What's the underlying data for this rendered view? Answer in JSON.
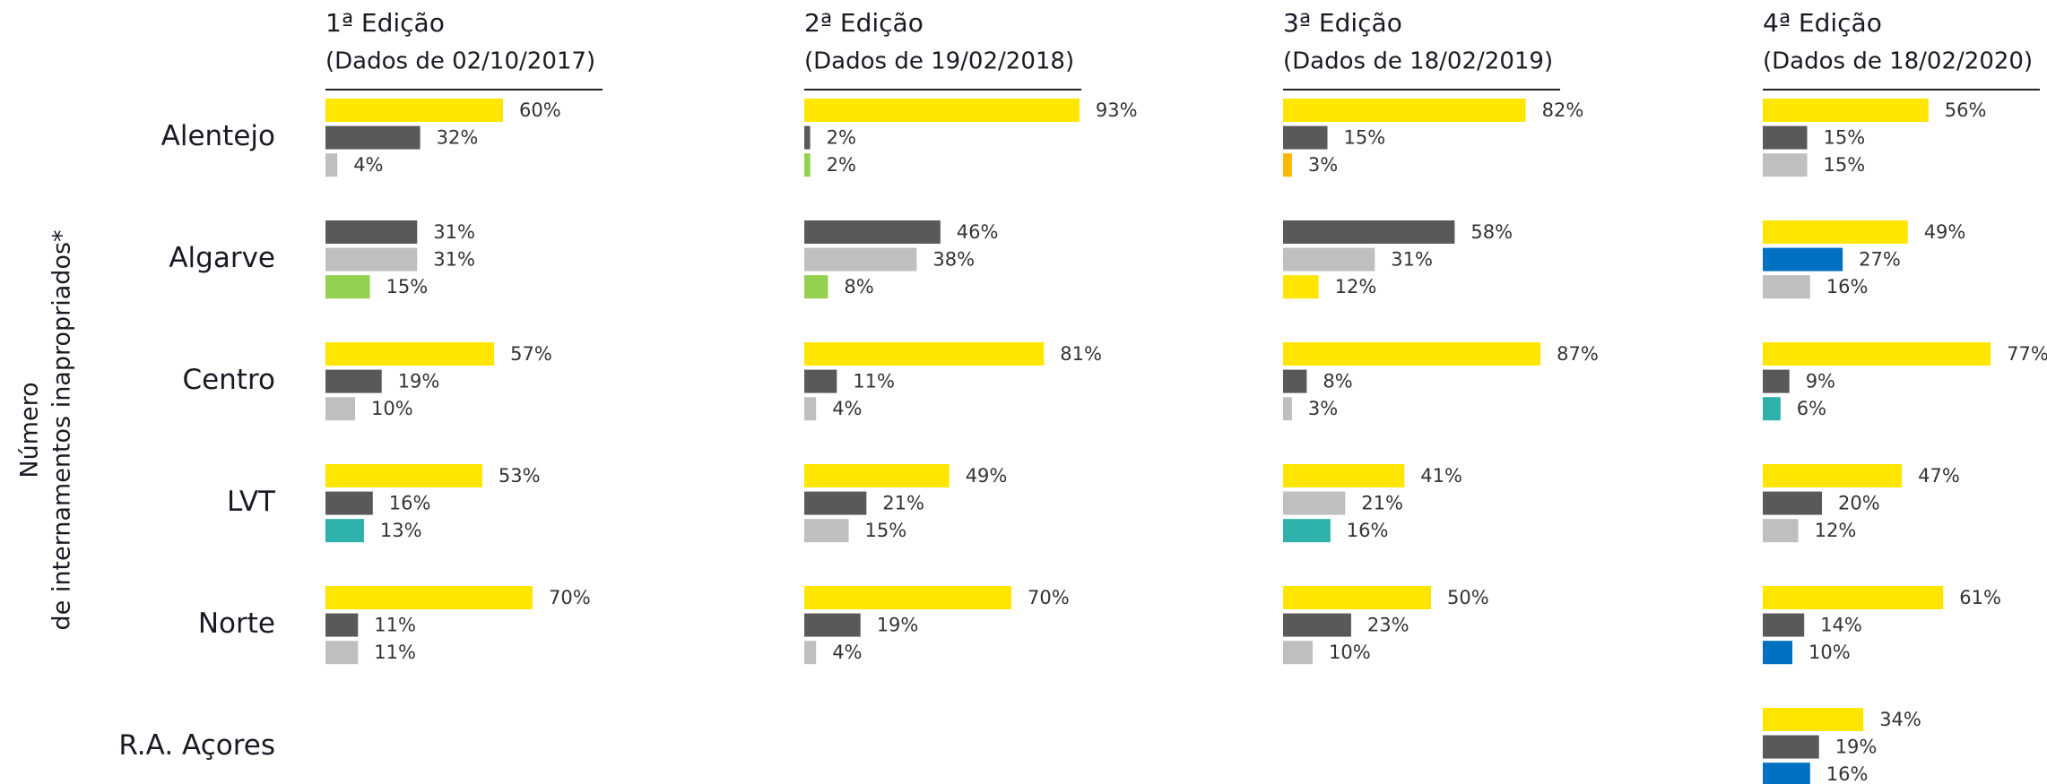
{
  "chart_data": {
    "type": "bar",
    "y_label": [
      "Número",
      "de internamentos inapropriados*"
    ],
    "categories": [
      "Alentejo",
      "Algarve",
      "Centro",
      "LVT",
      "Norte",
      "R.A. Açores"
    ],
    "xlim": [
      0,
      100
    ],
    "panels": [
      {
        "title": "1ª Edição",
        "subtitle": "(Dados de 02/10/2017)",
        "groups": [
          {
            "values": [
              60,
              32,
              4
            ],
            "value_labels": [
              "60%",
              "32%",
              "4%"
            ],
            "colors": [
              "#ffe600",
              "#595959",
              "#bfbfbf"
            ]
          },
          {
            "values": [
              31,
              31,
              15
            ],
            "value_labels": [
              "31%",
              "31%",
              "15%"
            ],
            "colors": [
              "#595959",
              "#bfbfbf",
              "#92d050"
            ]
          },
          {
            "values": [
              57,
              19,
              10
            ],
            "value_labels": [
              "57%",
              "19%",
              "10%"
            ],
            "colors": [
              "#ffe600",
              "#595959",
              "#bfbfbf"
            ]
          },
          {
            "values": [
              53,
              16,
              13
            ],
            "value_labels": [
              "53%",
              "16%",
              "13%"
            ],
            "colors": [
              "#ffe600",
              "#595959",
              "#2db1aa"
            ]
          },
          {
            "values": [
              70,
              11,
              11
            ],
            "value_labels": [
              "70%",
              "11%",
              "11%"
            ],
            "colors": [
              "#ffe600",
              "#595959",
              "#bfbfbf"
            ]
          }
        ]
      },
      {
        "title": "2ª Edição",
        "subtitle": "(Dados de 19/02/2018)",
        "groups": [
          {
            "values": [
              93,
              2,
              2
            ],
            "value_labels": [
              "93%",
              "2%",
              "2%"
            ],
            "colors": [
              "#ffe600",
              "#595959",
              "#92d050"
            ]
          },
          {
            "values": [
              46,
              38,
              8
            ],
            "value_labels": [
              "46%",
              "38%",
              "8%"
            ],
            "colors": [
              "#595959",
              "#bfbfbf",
              "#92d050"
            ]
          },
          {
            "values": [
              81,
              11,
              4
            ],
            "value_labels": [
              "81%",
              "11%",
              "4%"
            ],
            "colors": [
              "#ffe600",
              "#595959",
              "#bfbfbf"
            ]
          },
          {
            "values": [
              49,
              21,
              15
            ],
            "value_labels": [
              "49%",
              "21%",
              "15%"
            ],
            "colors": [
              "#ffe600",
              "#595959",
              "#bfbfbf"
            ]
          },
          {
            "values": [
              70,
              19,
              4
            ],
            "value_labels": [
              "70%",
              "19%",
              "4%"
            ],
            "colors": [
              "#ffe600",
              "#595959",
              "#bfbfbf"
            ]
          }
        ]
      },
      {
        "title": "3ª Edição",
        "subtitle": "(Dados de 18/02/2019)",
        "groups": [
          {
            "values": [
              82,
              15,
              3
            ],
            "value_labels": [
              "82%",
              "15%",
              "3%"
            ],
            "colors": [
              "#ffe600",
              "#595959",
              "#ffb800"
            ]
          },
          {
            "values": [
              58,
              31,
              12
            ],
            "value_labels": [
              "58%",
              "31%",
              "12%"
            ],
            "colors": [
              "#595959",
              "#bfbfbf",
              "#ffe600"
            ]
          },
          {
            "values": [
              87,
              8,
              3
            ],
            "value_labels": [
              "87%",
              "8%",
              "3%"
            ],
            "colors": [
              "#ffe600",
              "#595959",
              "#bfbfbf"
            ]
          },
          {
            "values": [
              41,
              21,
              16
            ],
            "value_labels": [
              "41%",
              "21%",
              "16%"
            ],
            "colors": [
              "#ffe600",
              "#bfbfbf",
              "#2db1aa"
            ]
          },
          {
            "values": [
              50,
              23,
              10
            ],
            "value_labels": [
              "50%",
              "23%",
              "10%"
            ],
            "colors": [
              "#ffe600",
              "#595959",
              "#bfbfbf"
            ]
          }
        ]
      },
      {
        "title": "4ª Edição",
        "subtitle": "(Dados de 18/02/2020)",
        "groups": [
          {
            "values": [
              56,
              15,
              15
            ],
            "value_labels": [
              "56%",
              "15%",
              "15%"
            ],
            "colors": [
              "#ffe600",
              "#595959",
              "#bfbfbf"
            ]
          },
          {
            "values": [
              49,
              27,
              16
            ],
            "value_labels": [
              "49%",
              "27%",
              "16%"
            ],
            "colors": [
              "#ffe600",
              "#0070c0",
              "#bfbfbf"
            ]
          },
          {
            "values": [
              77,
              9,
              6
            ],
            "value_labels": [
              "77%",
              "9%",
              "6%"
            ],
            "colors": [
              "#ffe600",
              "#595959",
              "#2db1aa"
            ]
          },
          {
            "values": [
              47,
              20,
              12
            ],
            "value_labels": [
              "47%",
              "20%",
              "12%"
            ],
            "colors": [
              "#ffe600",
              "#595959",
              "#bfbfbf"
            ]
          },
          {
            "values": [
              61,
              14,
              10
            ],
            "value_labels": [
              "61%",
              "14%",
              "10%"
            ],
            "colors": [
              "#ffe600",
              "#595959",
              "#0070c0"
            ]
          },
          {
            "values": [
              34,
              19,
              16
            ],
            "value_labels": [
              "34%",
              "19%",
              "16%"
            ],
            "colors": [
              "#ffe600",
              "#595959",
              "#0070c0"
            ]
          }
        ]
      }
    ]
  }
}
